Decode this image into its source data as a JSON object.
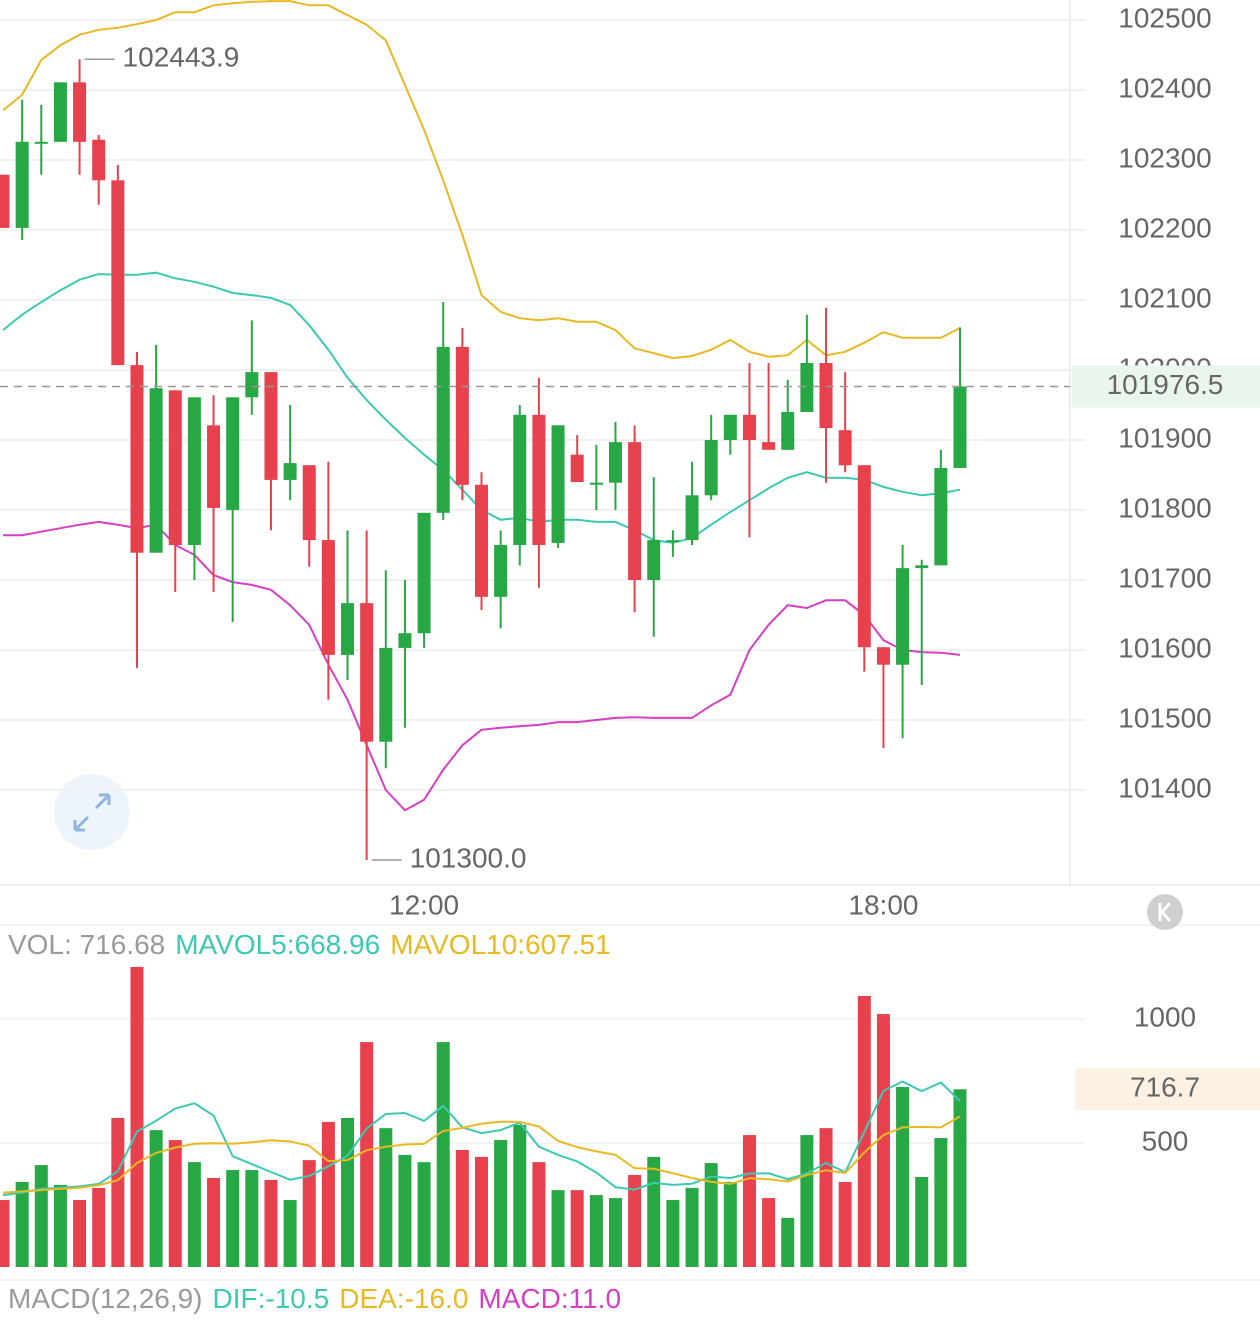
{
  "chart_data": [
    {
      "type": "candlestick",
      "categories": [
        null,
        null,
        null,
        null,
        null,
        null,
        null,
        null,
        null,
        null,
        null,
        null,
        null,
        null,
        null,
        null,
        null,
        null,
        null,
        null,
        null,
        null,
        "12:00",
        null,
        null,
        null,
        null,
        null,
        null,
        null,
        null,
        null,
        null,
        null,
        null,
        null,
        null,
        null,
        null,
        null,
        null,
        null,
        null,
        null,
        null,
        null,
        "18:00",
        null,
        null,
        null,
        null
      ],
      "open": [
        102279,
        102203,
        102326,
        102326,
        102411,
        102329,
        102271,
        102007,
        101739,
        101971,
        101750,
        101921,
        101800,
        101961,
        101997,
        101843,
        101864,
        101757,
        101593,
        101667,
        101469,
        101603,
        101624,
        101796,
        102033,
        101836,
        101676,
        101750,
        101936,
        101753,
        101879,
        101839,
        101839,
        101897,
        101700,
        101757,
        101757,
        101821,
        101900,
        101936,
        101897,
        101886,
        101940,
        102010,
        101914,
        101864,
        101604,
        101579,
        101717,
        101721,
        101860
      ],
      "high": [
        102279,
        102386,
        102379,
        102411,
        102443.9,
        102336,
        102293,
        102026,
        102036,
        101971,
        101961,
        101964,
        101961,
        102071,
        101997,
        101950,
        101864,
        101869,
        101771,
        101771,
        101714,
        101700,
        101796,
        102097,
        102060,
        101854,
        101771,
        101950,
        101989,
        101921,
        101907,
        101893,
        101926,
        101921,
        101847,
        101771,
        101869,
        101936,
        101936,
        102010,
        102010,
        101986,
        102079,
        102089,
        101997,
        101864,
        101604,
        101750,
        101729,
        101886,
        102061
      ],
      "low": [
        102203,
        102186,
        102279,
        102326,
        102279,
        102236,
        102007,
        101574,
        101739,
        101683,
        101700,
        101683,
        101640,
        101936,
        101771,
        101814,
        101719,
        101529,
        101557,
        101300,
        101431,
        101489,
        101603,
        101786,
        101814,
        101657,
        101631,
        101721,
        101689,
        101746,
        101840,
        101800,
        101800,
        101654,
        101619,
        101733,
        101750,
        101814,
        101879,
        101761,
        101886,
        101886,
        101940,
        101839,
        101854,
        101569,
        101460,
        101474,
        101550,
        101721,
        101860
      ],
      "close": [
        102203,
        102326,
        102326,
        102411,
        102326,
        102271,
        102007,
        101739,
        101974,
        101750,
        101961,
        101803,
        101961,
        101997,
        101843,
        101867,
        101757,
        101593,
        101667,
        101469,
        101603,
        101624,
        101796,
        102033,
        101836,
        101676,
        101750,
        101936,
        101750,
        101921,
        101840,
        101839,
        101897,
        101700,
        101757,
        101757,
        101821,
        101900,
        101936,
        101900,
        101886,
        101940,
        102010,
        101917,
        101864,
        101604,
        101579,
        101717,
        101721,
        101860,
        101976.5
      ],
      "up_color": "#27a845",
      "down_color": "#e8414e",
      "series": [
        {
          "color": "#e8b923",
          "values": [
            102371,
            102393,
            102443,
            102464,
            102479,
            102486,
            102489,
            102494,
            102500,
            102511,
            102511,
            102521,
            102524,
            102526,
            102527,
            102527,
            102521,
            102521,
            102507,
            102493,
            102471,
            102407,
            102343,
            102271,
            102193,
            102107,
            102083,
            102074,
            102071,
            102074,
            102069,
            102069,
            102057,
            102031,
            102024,
            102017,
            102020,
            102029,
            102043,
            102026,
            102019,
            102021,
            102043,
            102021,
            102026,
            102039,
            102054,
            102046,
            102046,
            102046,
            102060
          ]
        },
        {
          "color": "#3cc9b4",
          "values": [
            102057,
            102079,
            102097,
            102114,
            102129,
            102137,
            102136,
            102136,
            102139,
            102131,
            102126,
            102119,
            102110,
            102107,
            102103,
            102093,
            102064,
            102029,
            101989,
            101957,
            101929,
            101903,
            101879,
            101857,
            101829,
            101800,
            101786,
            101789,
            101783,
            101786,
            101786,
            101783,
            101783,
            101771,
            101757,
            101753,
            101760,
            101779,
            101797,
            101814,
            101831,
            101846,
            101854,
            101846,
            101846,
            101843,
            101833,
            101826,
            101821,
            101824,
            101829
          ]
        },
        {
          "color": "#d63fc4",
          "values": [
            101764,
            101764,
            101769,
            101774,
            101779,
            101783,
            101779,
            101774,
            101779,
            101750,
            101736,
            101707,
            101697,
            101693,
            101686,
            101664,
            101636,
            101579,
            101529,
            101464,
            101400,
            101371,
            101386,
            101429,
            101464,
            101486,
            101489,
            101491,
            101493,
            101497,
            101497,
            101500,
            101503,
            101504,
            101503,
            101503,
            101503,
            101521,
            101536,
            101600,
            101636,
            101664,
            101660,
            101671,
            101671,
            101650,
            101614,
            101600,
            101597,
            101596,
            101593
          ]
        }
      ],
      "ylim": [
        101264.3,
        102528.6
      ],
      "yticks": [
        101400,
        101500,
        101600,
        101700,
        101800,
        101900,
        102000,
        102100,
        102200,
        102300,
        102400,
        102500
      ],
      "grid": true,
      "high_label": 102443.9,
      "low_label": {
        "value": 101300,
        "label": "101300.0"
      },
      "current_price": 101976.5
    },
    {
      "type": "bar",
      "header": [
        {
          "text": "VOL: 716.68",
          "color": "#9a9a9a"
        },
        {
          "text": "MAVOL5:668.96",
          "color": "#3cc9b4"
        },
        {
          "text": "MAVOL10:607.51",
          "color": "#e8b923"
        }
      ],
      "values": [
        270,
        343,
        411,
        331,
        270,
        319,
        601,
        1210,
        552,
        512,
        423,
        359,
        391,
        391,
        351,
        270,
        431,
        585,
        601,
        907,
        560,
        452,
        423,
        907,
        472,
        444,
        512,
        573,
        423,
        310,
        310,
        290,
        278,
        371,
        444,
        270,
        319,
        419,
        343,
        532,
        278,
        198,
        532,
        560,
        343,
        1093,
        1020,
        726,
        363,
        520,
        716.68
      ],
      "series": [
        {
          "color": "#3cc9b4",
          "values": [
            290,
            300,
            315,
            320,
            325,
            335,
            386,
            546,
            590,
            639,
            660,
            611,
            447,
            415,
            383,
            352,
            367,
            406,
            448,
            559,
            617,
            621,
            589,
            650,
            563,
            540,
            552,
            582,
            485,
            452,
            426,
            381,
            322,
            312,
            339,
            331,
            336,
            365,
            359,
            377,
            378,
            354,
            377,
            420,
            382,
            545,
            710,
            748,
            709,
            744,
            668.96
          ]
        },
        {
          "color": "#e8b923",
          "values": [
            300,
            305,
            310,
            315,
            320,
            330,
            350,
            420,
            460,
            482,
            497,
            499,
            497,
            503,
            511,
            506,
            489,
            427,
            431,
            471,
            485,
            494,
            497,
            549,
            561,
            578,
            586,
            585,
            567,
            508,
            483,
            466,
            452,
            398,
            396,
            378,
            359,
            343,
            335,
            358,
            354,
            345,
            371,
            390,
            379,
            462,
            532,
            563,
            565,
            563,
            607.51
          ]
        }
      ],
      "ylim": [
        0,
        1230
      ],
      "yticks": [
        500,
        1000
      ],
      "current": {
        "value": 716.68,
        "label": "716.7"
      }
    },
    {
      "type": "macd",
      "header": [
        {
          "text": "MACD(12,26,9)",
          "color": "#9a9a9a"
        },
        {
          "text": "DIF:-10.5",
          "color": "#3cc9b4"
        },
        {
          "text": "DEA:-16.0",
          "color": "#e8b923"
        },
        {
          "text": "MACD:11.0",
          "color": "#d63fc4"
        }
      ]
    }
  ]
}
